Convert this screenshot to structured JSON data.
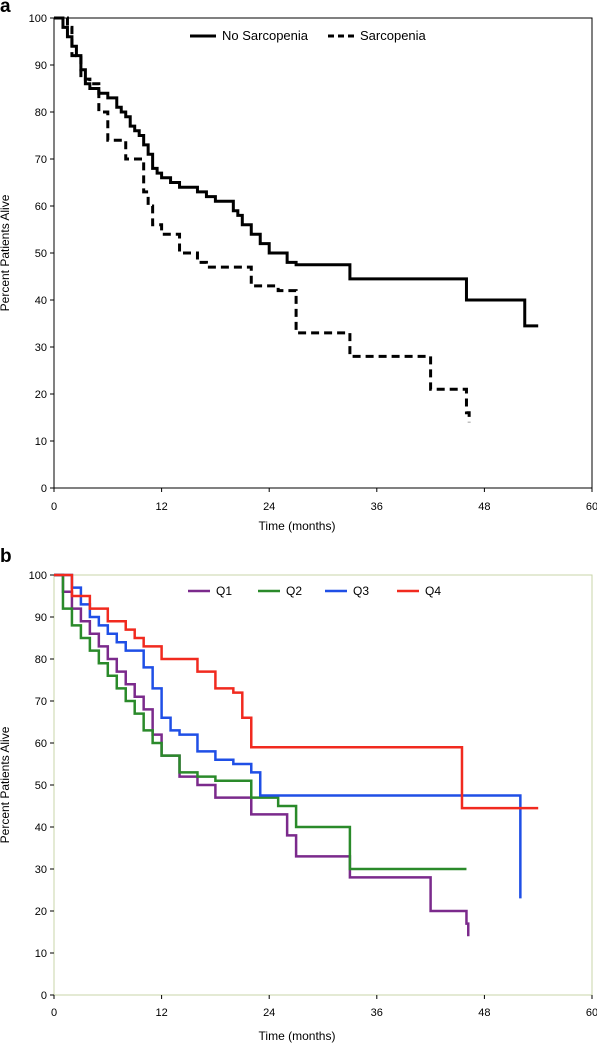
{
  "chart_data": [
    {
      "type": "line",
      "step": true,
      "panel_label": "a",
      "title": "",
      "xlabel": "Time (months)",
      "ylabel": "Percent Patients Alive",
      "xlim": [
        0,
        60
      ],
      "ylim": [
        0,
        100
      ],
      "xticks": [
        "0",
        "12",
        "24",
        "36",
        "48",
        "60"
      ],
      "yticks": [
        "0",
        "10",
        "20",
        "30",
        "40",
        "50",
        "60",
        "70",
        "80",
        "90",
        "100"
      ],
      "grid": false,
      "legend_position": "top",
      "series": [
        {
          "name": "No Sarcopenia",
          "color": "#000000",
          "dash": "solid",
          "x": [
            0,
            1,
            1.5,
            2,
            2.5,
            3,
            3.5,
            4,
            5,
            6,
            7,
            7.5,
            8,
            8.5,
            9,
            9.5,
            10,
            10.5,
            11,
            11.5,
            12,
            13,
            14,
            16,
            17,
            18,
            20,
            20.5,
            21,
            22,
            23,
            24,
            26,
            27,
            33,
            46,
            52.5,
            54
          ],
          "y": [
            100,
            98,
            96,
            94,
            92,
            89,
            86,
            85,
            84,
            83,
            81,
            80,
            79,
            77,
            76,
            75,
            73,
            71,
            68,
            67,
            66,
            65,
            64,
            63,
            62,
            61,
            59,
            58,
            56,
            54,
            52,
            50,
            48,
            47.5,
            44.5,
            40,
            34.5,
            34.5
          ]
        },
        {
          "name": "Sarcopenia",
          "color": "#000000",
          "dash": "dashed",
          "x": [
            0,
            1.5,
            2,
            3,
            4,
            5,
            6,
            8,
            10,
            10.5,
            11,
            12,
            14,
            16,
            17,
            22,
            25,
            27,
            33,
            42,
            43,
            46,
            46.3
          ],
          "y": [
            100,
            98,
            92,
            87,
            86,
            80,
            74,
            70,
            63,
            60,
            56,
            54,
            50,
            48,
            47,
            43,
            42,
            33,
            28,
            21,
            21,
            16,
            14
          ]
        }
      ]
    },
    {
      "type": "line",
      "step": true,
      "panel_label": "b",
      "title": "",
      "xlabel": "Time (months)",
      "ylabel": "Percent Patients Alive",
      "xlim": [
        0,
        60
      ],
      "ylim": [
        0,
        100
      ],
      "xticks": [
        "0",
        "12",
        "24",
        "36",
        "48",
        "60"
      ],
      "yticks": [
        "0",
        "10",
        "20",
        "30",
        "40",
        "50",
        "60",
        "70",
        "80",
        "90",
        "100"
      ],
      "grid": false,
      "legend_position": "top",
      "series": [
        {
          "name": "Q1",
          "color": "#7b2a8c",
          "dash": "solid",
          "x": [
            0,
            1,
            2,
            3,
            4,
            5,
            6,
            7,
            8,
            9,
            10,
            11,
            12,
            14,
            16,
            18,
            22,
            26,
            27,
            33,
            42,
            46,
            46.2
          ],
          "y": [
            100,
            96,
            92,
            89,
            86,
            83,
            80,
            77,
            74,
            71,
            68,
            62,
            57,
            52,
            50,
            47,
            43,
            38,
            33,
            28,
            20,
            17,
            14
          ]
        },
        {
          "name": "Q2",
          "color": "#2a8a2a",
          "dash": "solid",
          "x": [
            0,
            1,
            2,
            3,
            4,
            5,
            6,
            7,
            8,
            9,
            10,
            11,
            12,
            14,
            16,
            18,
            22,
            25,
            27,
            33,
            46
          ],
          "y": [
            100,
            92,
            88,
            85,
            82,
            79,
            76,
            73,
            70,
            67,
            63,
            60,
            57,
            53,
            52,
            51,
            47,
            45,
            40,
            30,
            30
          ]
        },
        {
          "name": "Q3",
          "color": "#1f4fe6",
          "dash": "solid",
          "x": [
            0,
            2,
            3,
            4,
            5,
            6,
            7,
            8,
            10,
            11,
            12,
            13,
            14,
            16,
            18,
            20,
            22,
            23,
            52,
            52.01
          ],
          "y": [
            100,
            97,
            93,
            90,
            88,
            86,
            84,
            82,
            78,
            73,
            66,
            63,
            62,
            58,
            56,
            55,
            53,
            47.5,
            47.5,
            23
          ]
        },
        {
          "name": "Q4",
          "color": "#f12a1f",
          "dash": "solid",
          "x": [
            0,
            2,
            4,
            6,
            8,
            9,
            10,
            12,
            16,
            18,
            20,
            21,
            22,
            45.5,
            54
          ],
          "y": [
            100,
            95,
            92,
            89,
            87,
            85,
            83,
            80,
            77,
            73,
            72,
            66,
            59,
            44.5,
            44.5
          ]
        }
      ]
    }
  ]
}
